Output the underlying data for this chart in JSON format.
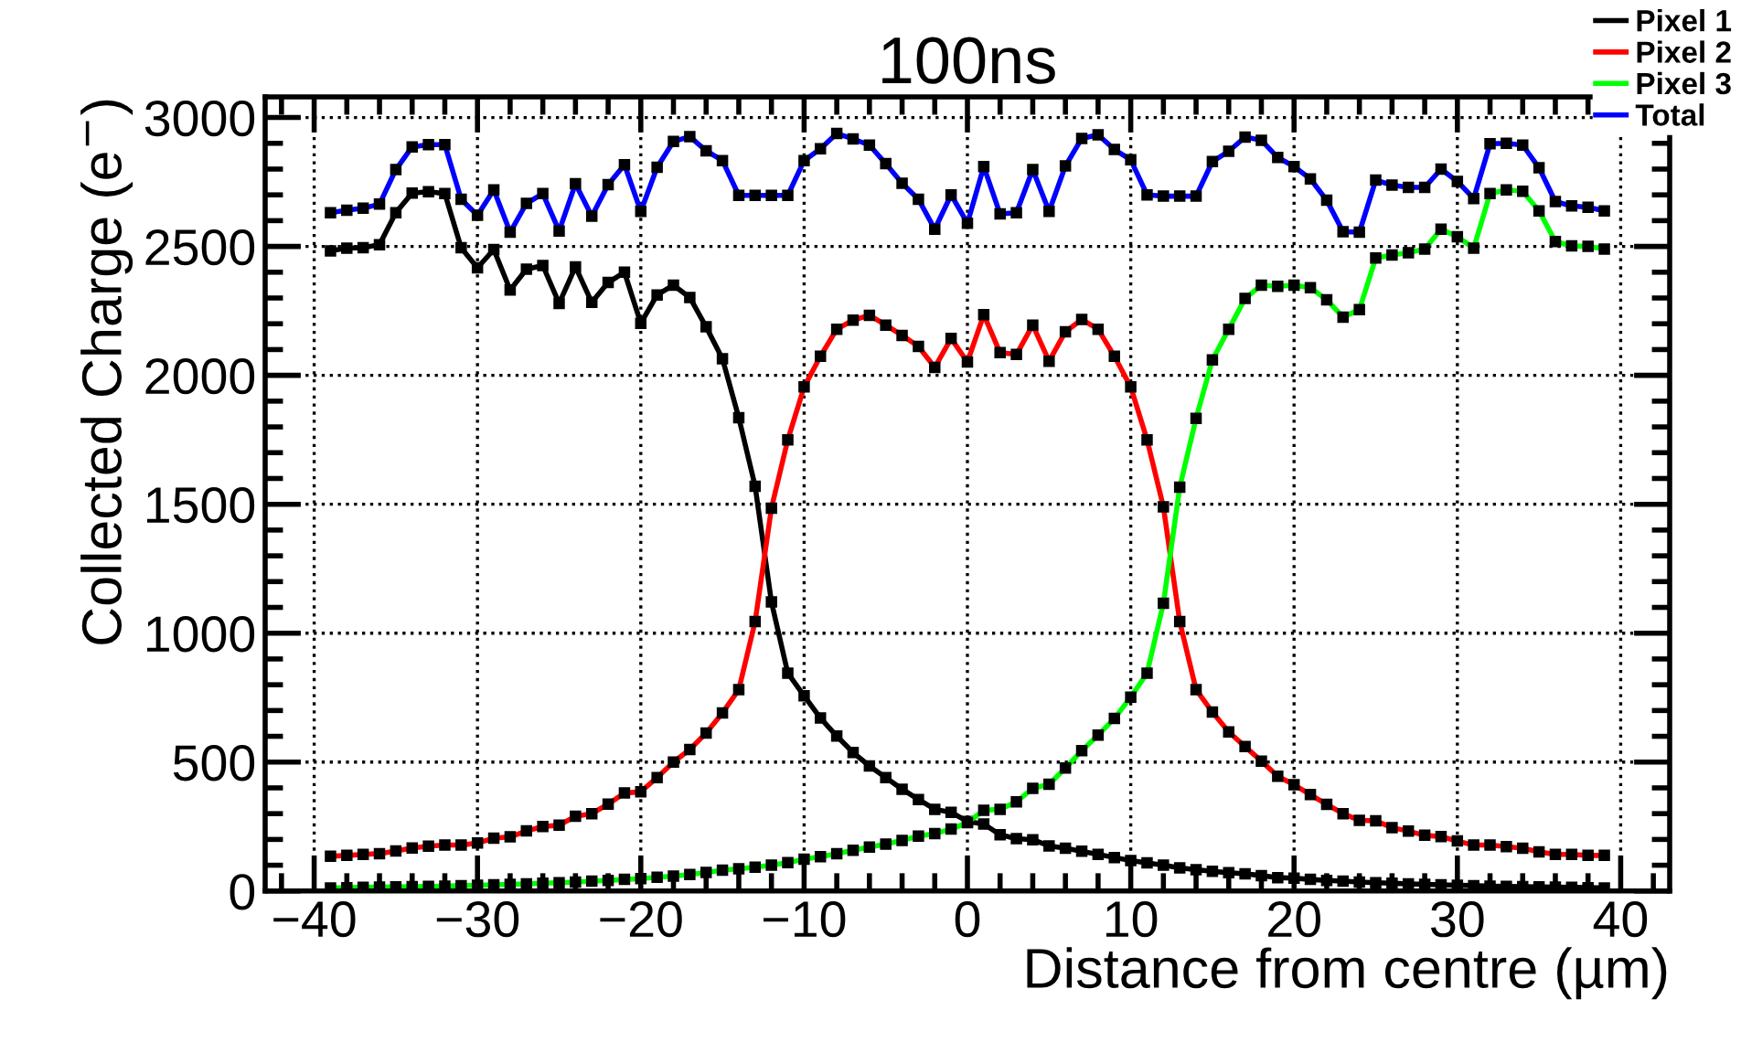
{
  "chart_data": {
    "type": "line",
    "title": "100ns",
    "xlabel": "Distance from centre (µm)",
    "ylabel": "Collected Charge (e$^{−}$)",
    "x": [
      -39,
      -38,
      -37,
      -36,
      -35,
      -34,
      -33,
      -32,
      -31,
      -30,
      -29,
      -28,
      -27,
      -26,
      -25,
      -24,
      -23,
      -22,
      -21,
      -20,
      -19,
      -18,
      -17,
      -16,
      -15,
      -14,
      -13,
      -12,
      -11,
      -10,
      -9,
      -8,
      -7,
      -6,
      -5,
      -4,
      -3,
      -2,
      -1,
      0,
      1,
      2,
      3,
      4,
      5,
      6,
      7,
      8,
      9,
      10,
      11,
      12,
      13,
      14,
      15,
      16,
      17,
      18,
      19,
      20,
      21,
      22,
      23,
      24,
      25,
      26,
      27,
      28,
      29,
      30,
      31,
      32,
      33,
      34,
      35,
      36,
      37,
      38,
      39
    ],
    "series": [
      {
        "name": "Pixel 1",
        "color": "#000000",
        "values": [
          2483,
          2493,
          2495,
          2507,
          2631,
          2707,
          2712,
          2705,
          2495,
          2417,
          2488,
          2331,
          2412,
          2426,
          2279,
          2421,
          2283,
          2360,
          2400,
          2202,
          2312,
          2350,
          2302,
          2188,
          2064,
          1836,
          1570,
          1121,
          845,
          757,
          671,
          601,
          537,
          485,
          440,
          395,
          355,
          317,
          305,
          270,
          260,
          218,
          203,
          199,
          175,
          166,
          154,
          142,
          130,
          118,
          109,
          100,
          90,
          83,
          76,
          71,
          67,
          60,
          52,
          50,
          45,
          41,
          38,
          35,
          32,
          30,
          28,
          26,
          24,
          22,
          21,
          19,
          18,
          17,
          16,
          15,
          14,
          13,
          12
        ]
      },
      {
        "name": "Pixel 2",
        "color": "#ff0000",
        "values": [
          135,
          138,
          142,
          145,
          155,
          167,
          174,
          178,
          178,
          186,
          205,
          210,
          233,
          250,
          255,
          290,
          300,
          337,
          380,
          385,
          440,
          500,
          549,
          613,
          691,
          781,
          1045,
          1485,
          1750,
          1955,
          2074,
          2179,
          2214,
          2233,
          2195,
          2155,
          2112,
          2031,
          2143,
          2052,
          2235,
          2088,
          2081,
          2195,
          2055,
          2169,
          2217,
          2179,
          2074,
          1955,
          1750,
          1490,
          1045,
          781,
          694,
          617,
          560,
          504,
          445,
          412,
          374,
          336,
          300,
          274,
          272,
          246,
          232,
          216,
          211,
          194,
          178,
          178,
          172,
          166,
          152,
          142,
          142,
          138,
          138
        ]
      },
      {
        "name": "Pixel 3",
        "color": "#00ff00",
        "values": [
          12,
          13,
          14,
          15,
          16,
          17,
          18,
          19,
          21,
          22,
          24,
          26,
          28,
          30,
          32,
          35,
          38,
          41,
          45,
          48,
          53,
          58,
          64,
          72,
          81,
          86,
          92,
          100,
          110,
          123,
          133,
          145,
          158,
          170,
          182,
          196,
          213,
          223,
          240,
          265,
          313,
          317,
          346,
          398,
          414,
          477,
          544,
          605,
          669,
          752,
          845,
          1116,
          1566,
          1833,
          2060,
          2179,
          2298,
          2350,
          2345,
          2350,
          2340,
          2293,
          2226,
          2255,
          2455,
          2467,
          2476,
          2490,
          2567,
          2538,
          2493,
          2705,
          2719,
          2714,
          2638,
          2519,
          2502,
          2500,
          2490
        ]
      },
      {
        "name": "Total",
        "color": "#0000ff",
        "values": [
          2631,
          2640,
          2648,
          2664,
          2798,
          2886,
          2895,
          2895,
          2683,
          2621,
          2719,
          2555,
          2667,
          2705,
          2560,
          2743,
          2617,
          2740,
          2817,
          2636,
          2807,
          2907,
          2926,
          2871,
          2833,
          2698,
          2698,
          2698,
          2698,
          2833,
          2879,
          2938,
          2917,
          2893,
          2821,
          2745,
          2683,
          2567,
          2700,
          2590,
          2810,
          2626,
          2631,
          2798,
          2636,
          2812,
          2919,
          2933,
          2876,
          2836,
          2700,
          2695,
          2695,
          2695,
          2829,
          2869,
          2924,
          2912,
          2845,
          2810,
          2762,
          2679,
          2557,
          2555,
          2757,
          2738,
          2729,
          2729,
          2800,
          2752,
          2686,
          2898,
          2900,
          2893,
          2805,
          2674,
          2657,
          2652,
          2638
        ]
      }
    ],
    "xlim": [
      -43,
      43
    ],
    "xticks": [
      -40,
      -30,
      -20,
      -10,
      0,
      10,
      20,
      30,
      40
    ],
    "ylim": [
      0,
      3080
    ],
    "yticks": [
      0,
      500,
      1000,
      1500,
      2000,
      2500,
      3000
    ],
    "grid": true,
    "legend": "top right",
    "marker": "square",
    "line_style": "solid"
  }
}
